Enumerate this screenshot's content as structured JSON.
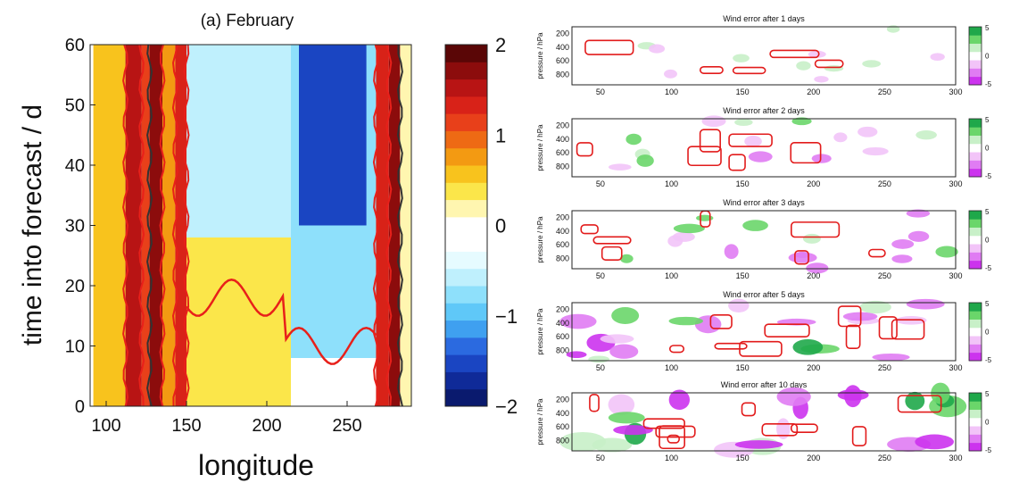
{
  "chart_data": [
    {
      "type": "heatmap",
      "title": "(a) February",
      "xlabel": "longitude",
      "ylabel": "time into forecast / d",
      "xlim": [
        90,
        290
      ],
      "ylim": [
        0,
        60
      ],
      "x_ticks": [
        100,
        150,
        200,
        250
      ],
      "y_ticks": [
        0,
        10,
        20,
        30,
        40,
        50,
        60
      ],
      "colorbar": {
        "range": [
          -2,
          2
        ],
        "ticks": [
          -2,
          -1,
          0,
          1,
          2
        ],
        "tick_labels": [
          "−2",
          "−1",
          "0",
          "1",
          "2"
        ],
        "colors": [
          "#0a1a6e",
          "#0f2a98",
          "#1a45c2",
          "#2b6ae0",
          "#3fa0f0",
          "#5fc8f8",
          "#8ee0fb",
          "#bff0fd",
          "#e6fbff",
          "#ffffff",
          "#ffffff",
          "#fff6b0",
          "#fbe64a",
          "#f8c31d",
          "#f39a12",
          "#ee6a14",
          "#e8401a",
          "#d82218",
          "#b81414",
          "#8c0c0c",
          "#5a0606"
        ]
      },
      "regions": [
        {
          "x0": 92,
          "x1": 112,
          "y0": 0,
          "y1": 60,
          "value": 0.5
        },
        {
          "x0": 112,
          "x1": 122,
          "y0": 0,
          "y1": 60,
          "value": 1.5
        },
        {
          "x0": 122,
          "x1": 127,
          "y0": 0,
          "y1": 60,
          "value": 1.2
        },
        {
          "x0": 127,
          "x1": 135,
          "y0": 0,
          "y1": 60,
          "value": 1.8
        },
        {
          "x0": 135,
          "x1": 143,
          "y0": 0,
          "y1": 60,
          "value": 0.8
        },
        {
          "x0": 143,
          "x1": 150,
          "y0": 0,
          "y1": 60,
          "value": 1.3
        },
        {
          "x0": 150,
          "x1": 215,
          "y0": 28,
          "y1": 60,
          "value": -0.7
        },
        {
          "x0": 215,
          "x1": 268,
          "y0": 8,
          "y1": 60,
          "value": -0.9
        },
        {
          "x0": 220,
          "x1": 262,
          "y0": 30,
          "y1": 60,
          "value": -1.7
        },
        {
          "x0": 150,
          "x1": 215,
          "y0": 0,
          "y1": 28,
          "value": 0.3
        },
        {
          "x0": 268,
          "x1": 276,
          "y0": 0,
          "y1": 60,
          "value": 1.4
        },
        {
          "x0": 276,
          "x1": 283,
          "y0": 0,
          "y1": 60,
          "value": 1.7
        },
        {
          "x0": 283,
          "x1": 290,
          "y0": 0,
          "y1": 60,
          "value": 0.2
        }
      ]
    },
    {
      "type": "heatmap",
      "panels": [
        {
          "title": "Wind error after 1 days",
          "intensity": 0.2
        },
        {
          "title": "Wind error after 2 days",
          "intensity": 0.4
        },
        {
          "title": "Wind error after 3 days",
          "intensity": 0.55
        },
        {
          "title": "Wind error after 5 days",
          "intensity": 0.75
        },
        {
          "title": "Wind error after 10 days",
          "intensity": 1.0
        }
      ],
      "ylabel": "pressure / hPa",
      "xlim": [
        30,
        300
      ],
      "ylim": [
        950,
        100
      ],
      "x_ticks": [
        50,
        100,
        150,
        200,
        250,
        300
      ],
      "y_ticks": [
        200,
        400,
        600,
        800
      ],
      "colorbar": {
        "range": [
          -5,
          5
        ],
        "tick_labels": [
          "5",
          "0",
          "-5"
        ],
        "colors": [
          "#cc33ee",
          "#e07cf3",
          "#f2c4f8",
          "#ffffff",
          "#c8f0c8",
          "#6ad66a",
          "#1fa84a"
        ]
      }
    }
  ]
}
